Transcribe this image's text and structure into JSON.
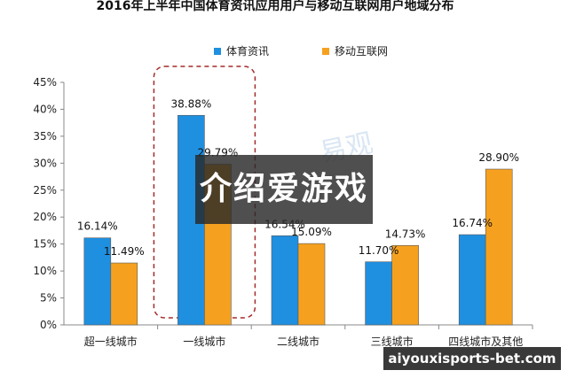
{
  "chart_data": {
    "type": "bar",
    "title": "2016年上半年中国体育资讯应用用户与移动互联网用户地域分布",
    "categories": [
      "超一线城市",
      "一线城市",
      "二线城市",
      "三线城市",
      "四线城市及其他"
    ],
    "series": [
      {
        "name": "体育资讯",
        "values": [
          16.14,
          38.88,
          16.54,
          11.7,
          16.74
        ],
        "labels": [
          "16.14%",
          "38.88%",
          "16.54%",
          "11.70%",
          "16.74%"
        ],
        "color": "#1f8fe0"
      },
      {
        "name": "移动互联网",
        "values": [
          11.49,
          29.79,
          15.09,
          14.73,
          28.9
        ],
        "labels": [
          "11.49%",
          "29.79%",
          "15.09%",
          "14.73%",
          "28.90%"
        ],
        "color": "#f5a11f"
      }
    ],
    "yticks": [
      "0%",
      "5%",
      "10%",
      "15%",
      "20%",
      "25%",
      "30%",
      "35%",
      "40%",
      "45%"
    ],
    "ylim": [
      0,
      45
    ],
    "grid": false,
    "legend_position": "top",
    "highlight_category": "一线城市",
    "highlight_color": "#a52a2a"
  },
  "watermark": "易观",
  "overlay_text": "介绍爱游戏",
  "site_label": "aiyouxisports-bet.com"
}
